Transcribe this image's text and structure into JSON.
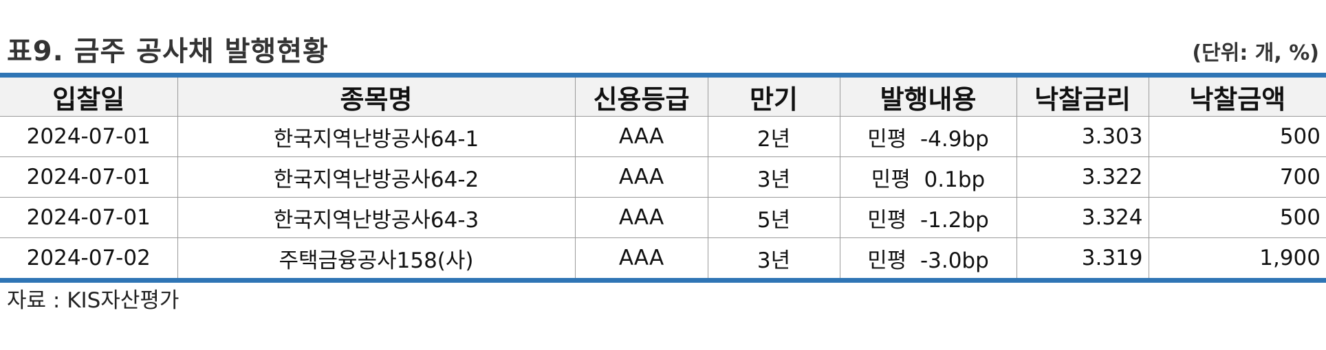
{
  "title": "표9. 금주 공사채 발행현황",
  "unit": "(단위: 개, %)",
  "table": {
    "headers": [
      "입찰일",
      "종목명",
      "신용등급",
      "만기",
      "발행내용",
      "낙찰금리",
      "낙찰금액"
    ],
    "rows": [
      [
        "2024-07-01",
        "한국지역난방공사64-1",
        "AAA",
        "2년",
        "민평  -4.9bp",
        "3.303",
        "500"
      ],
      [
        "2024-07-01",
        "한국지역난방공사64-2",
        "AAA",
        "3년",
        "민평  0.1bp",
        "3.322",
        "700"
      ],
      [
        "2024-07-01",
        "한국지역난방공사64-3",
        "AAA",
        "5년",
        "민평  -1.2bp",
        "3.324",
        "500"
      ],
      [
        "2024-07-02",
        "주택금융공사158(사)",
        "AAA",
        "3년",
        "민평  -3.0bp",
        "3.319",
        "1,900"
      ]
    ]
  },
  "source": "자료 : KIS자산평가",
  "colors": {
    "border_accent": "#2f75b5",
    "header_bg": "#f2f2f2"
  }
}
